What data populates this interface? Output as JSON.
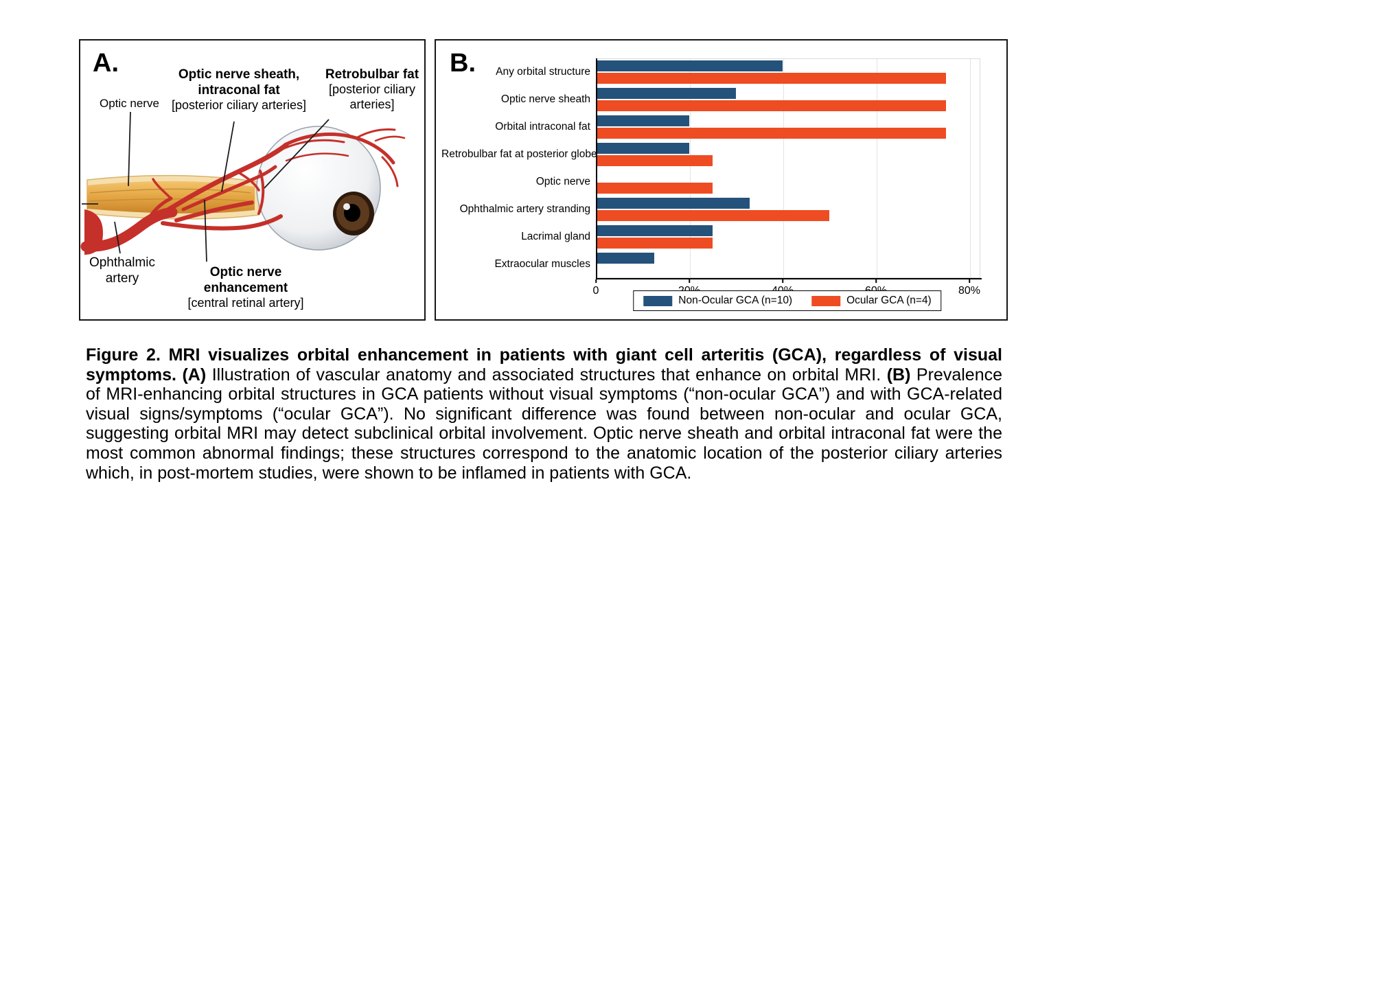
{
  "figure": {
    "panel_a": {
      "label": "A.",
      "optic_nerve_label": "Optic nerve",
      "sheath_title": "Optic nerve sheath, intraconal fat",
      "sheath_sub": "[posterior ciliary arteries]",
      "retrobulbar_title": "Retrobulbar fat",
      "retrobulbar_sub": "[posterior ciliary arteries]",
      "ophthalmic_label": "Ophthalmic artery",
      "enhancement_title": "Optic nerve enhancement",
      "enhancement_sub": "[central retinal artery]"
    },
    "panel_b": {
      "label": "B."
    },
    "caption": {
      "title": "Figure 2. MRI visualizes orbital enhancement in patients with giant cell arteritis (GCA), regardless of visual symptoms.",
      "a_label": "(A)",
      "a_text": "Illustration of vascular anatomy and associated structures that enhance on orbital MRI.",
      "b_label": "(B)",
      "b_text": "Prevalence of MRI-enhancing orbital structures in GCA patients without visual symptoms (“non-ocular GCA”) and with GCA-related visual signs/symptoms (“ocular GCA”). No significant difference was found between non-ocular and ocular GCA, suggesting orbital MRI may detect subclinical orbital involvement. Optic nerve sheath and orbital intraconal fat were the most common abnormal findings; these structures correspond to the anatomic location of the posterior ciliary arteries which, in post-mortem studies, were shown to be inflamed in patients with GCA."
    }
  },
  "chart_data": {
    "type": "bar",
    "orientation": "horizontal",
    "title": "",
    "xlabel": "",
    "ylabel": "",
    "xlim": [
      0,
      82
    ],
    "grid": "vertical",
    "legend_position": "bottom",
    "categories": [
      "Any orbital structure",
      "Optic nerve sheath",
      "Orbital intraconal fat",
      "Retrobulbar fat at posterior globe",
      "Optic nerve",
      "Ophthalmic artery stranding",
      "Lacrimal gland",
      "Extraocular muscles"
    ],
    "series": [
      {
        "name": "Non-Ocular GCA (n=10)",
        "color": "#24527a",
        "values": [
          40,
          30,
          20,
          20,
          0,
          33,
          25,
          12.5
        ]
      },
      {
        "name": "Ocular GCA (n=4)",
        "color": "#ee4c22",
        "values": [
          75,
          75,
          75,
          25,
          25,
          50,
          25,
          0
        ]
      }
    ],
    "x_ticks": [
      {
        "value": 0,
        "label": "0"
      },
      {
        "value": 20,
        "label": "20%"
      },
      {
        "value": 40,
        "label": "40%"
      },
      {
        "value": 60,
        "label": "60%"
      },
      {
        "value": 80,
        "label": "80%"
      }
    ]
  }
}
